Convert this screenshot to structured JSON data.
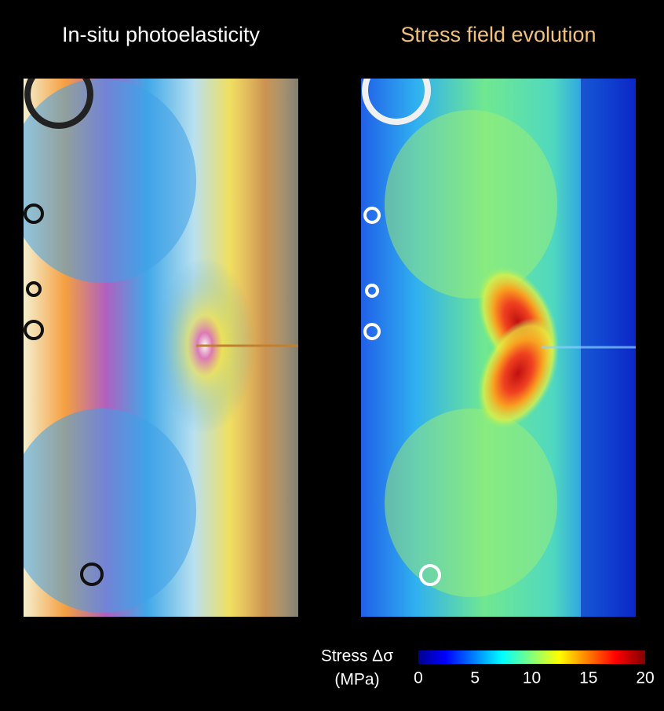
{
  "panels": [
    {
      "title": "In-situ photoelasticity"
    },
    {
      "title": "Stress field evolution"
    }
  ],
  "colorbar": {
    "label_line1": "Stress Δσ",
    "label_line2": "(MPa)",
    "range": [
      0,
      20
    ],
    "ticks": [
      0,
      5,
      10,
      15,
      20
    ]
  }
}
